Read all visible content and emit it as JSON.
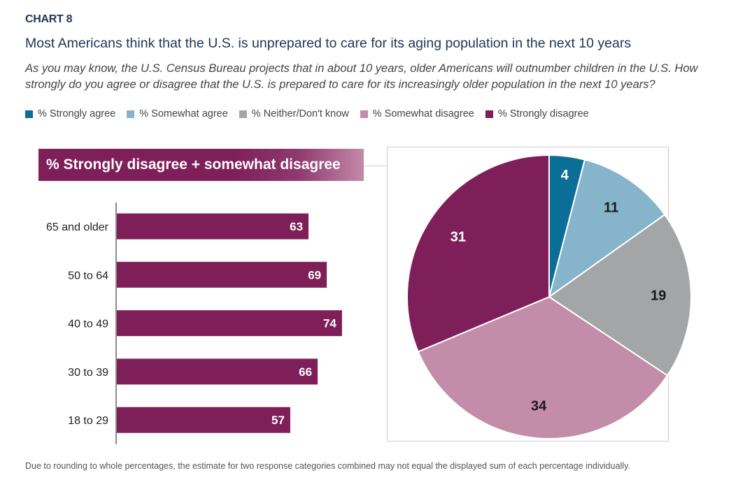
{
  "header": {
    "chart_label": "CHART 8",
    "title": "Most Americans think that the U.S. is unprepared to care for its aging population in the next 10 years",
    "subtitle": "As you may know, the U.S. Census Bureau projects that in about 10 years, older Americans will outnumber children in the U.S. How strongly do you agree or disagree that the U.S. is prepared to care for its increasingly older population in the next 10 years?"
  },
  "legend": [
    {
      "label": "% Strongly agree",
      "color": "#0b6e96"
    },
    {
      "label": "% Somewhat agree",
      "color": "#86b4cb"
    },
    {
      "label": "% Neither/Don't know",
      "color": "#a3a6a7"
    },
    {
      "label": "% Somewhat disagree",
      "color": "#c38ca9"
    },
    {
      "label": "% Strongly disagree",
      "color": "#7f1f5a"
    }
  ],
  "footnote": "Due to rounding to whole percentages, the estimate for two response categories combined may not equal the displayed sum of each percentage individually.",
  "chart_data": [
    {
      "type": "bar",
      "orientation": "horizontal",
      "title": "% Strongly disagree + somewhat disagree",
      "categories": [
        "65 and older",
        "50 to 64",
        "40 to 49",
        "30 to 39",
        "18 to 29"
      ],
      "values": [
        63,
        69,
        74,
        66,
        57
      ],
      "color": "#7f1f5a",
      "xlim": [
        0,
        100
      ],
      "grid": false
    },
    {
      "type": "pie",
      "title": "",
      "labels": [
        "% Strongly agree",
        "% Somewhat agree",
        "% Neither/Don't know",
        "% Somewhat disagree",
        "% Strongly disagree"
      ],
      "values": [
        4,
        11,
        19,
        34,
        31
      ],
      "colors": [
        "#0b6e96",
        "#86b4cb",
        "#a3a6a7",
        "#c38ca9",
        "#7f1f5a"
      ],
      "label_colors": [
        "#ffffff",
        "#1a1a1a",
        "#1a1a1a",
        "#1a1a1a",
        "#ffffff"
      ],
      "start": "12 o'clock, clockwise"
    }
  ]
}
